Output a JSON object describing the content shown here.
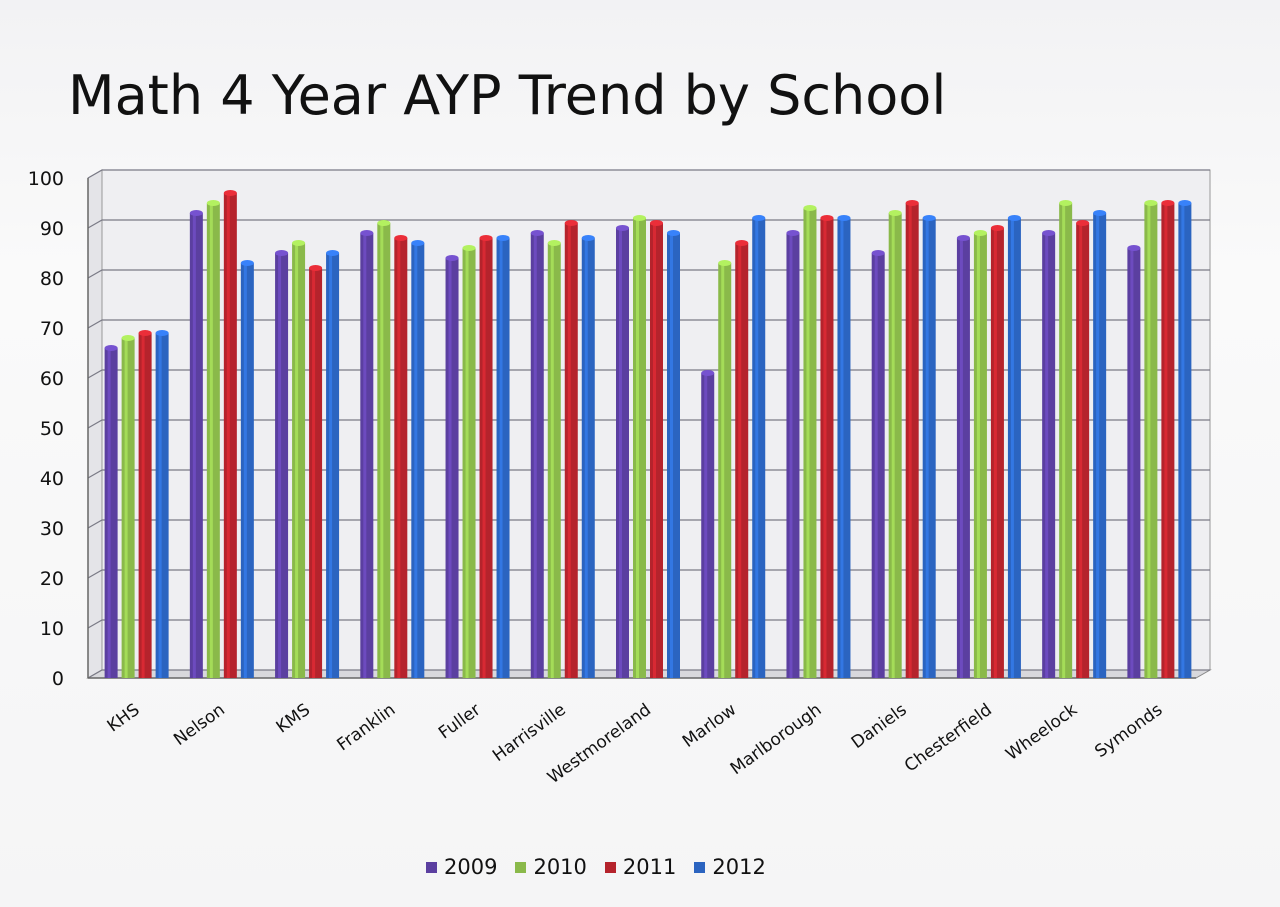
{
  "chart_data": {
    "type": "bar",
    "title": "Math 4 Year AYP Trend by School",
    "categories": [
      "KHS",
      "Nelson",
      "KMS",
      "Franklin",
      "Fuller",
      "Harrisville",
      "Westmoreland",
      "Marlow",
      "Marlborough",
      "Daniels",
      "Chesterfield",
      "Wheelock",
      "Symonds"
    ],
    "series": [
      {
        "name": "2009",
        "color": "#5b3fa0",
        "values": [
          66,
          93,
          85,
          89,
          84,
          89,
          90,
          61,
          89,
          85,
          88,
          89,
          86
        ]
      },
      {
        "name": "2010",
        "color": "#8ab94a",
        "values": [
          68,
          95,
          87,
          91,
          86,
          87,
          92,
          83,
          94,
          93,
          89,
          95,
          95
        ]
      },
      {
        "name": "2011",
        "color": "#b5232c",
        "values": [
          69,
          97,
          82,
          88,
          88,
          91,
          91,
          87,
          92,
          95,
          90,
          91,
          95
        ]
      },
      {
        "name": "2012",
        "color": "#2b64c0",
        "values": [
          69,
          83,
          85,
          87,
          88,
          88,
          89,
          92,
          92,
          92,
          92,
          93,
          95
        ]
      }
    ],
    "yticks": [
      "0",
      "10",
      "20",
      "30",
      "40",
      "50",
      "60",
      "70",
      "80",
      "90",
      "100"
    ],
    "ylim": [
      0,
      100
    ],
    "grid": true,
    "legend_position": "bottom",
    "xlabel": "",
    "ylabel": ""
  }
}
